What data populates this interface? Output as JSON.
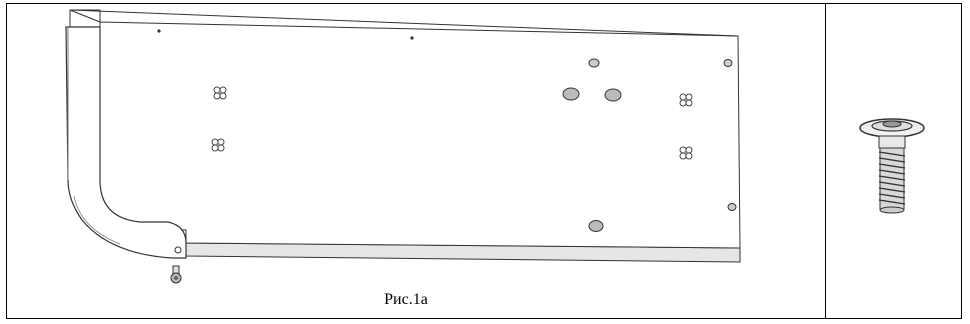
{
  "figure": {
    "caption": "Рис.1a",
    "left_cell": {
      "illustration": "board-panel-with-holes-and-bent-bracket"
    },
    "right_cell": {
      "illustration": "screw-with-washer"
    }
  }
}
